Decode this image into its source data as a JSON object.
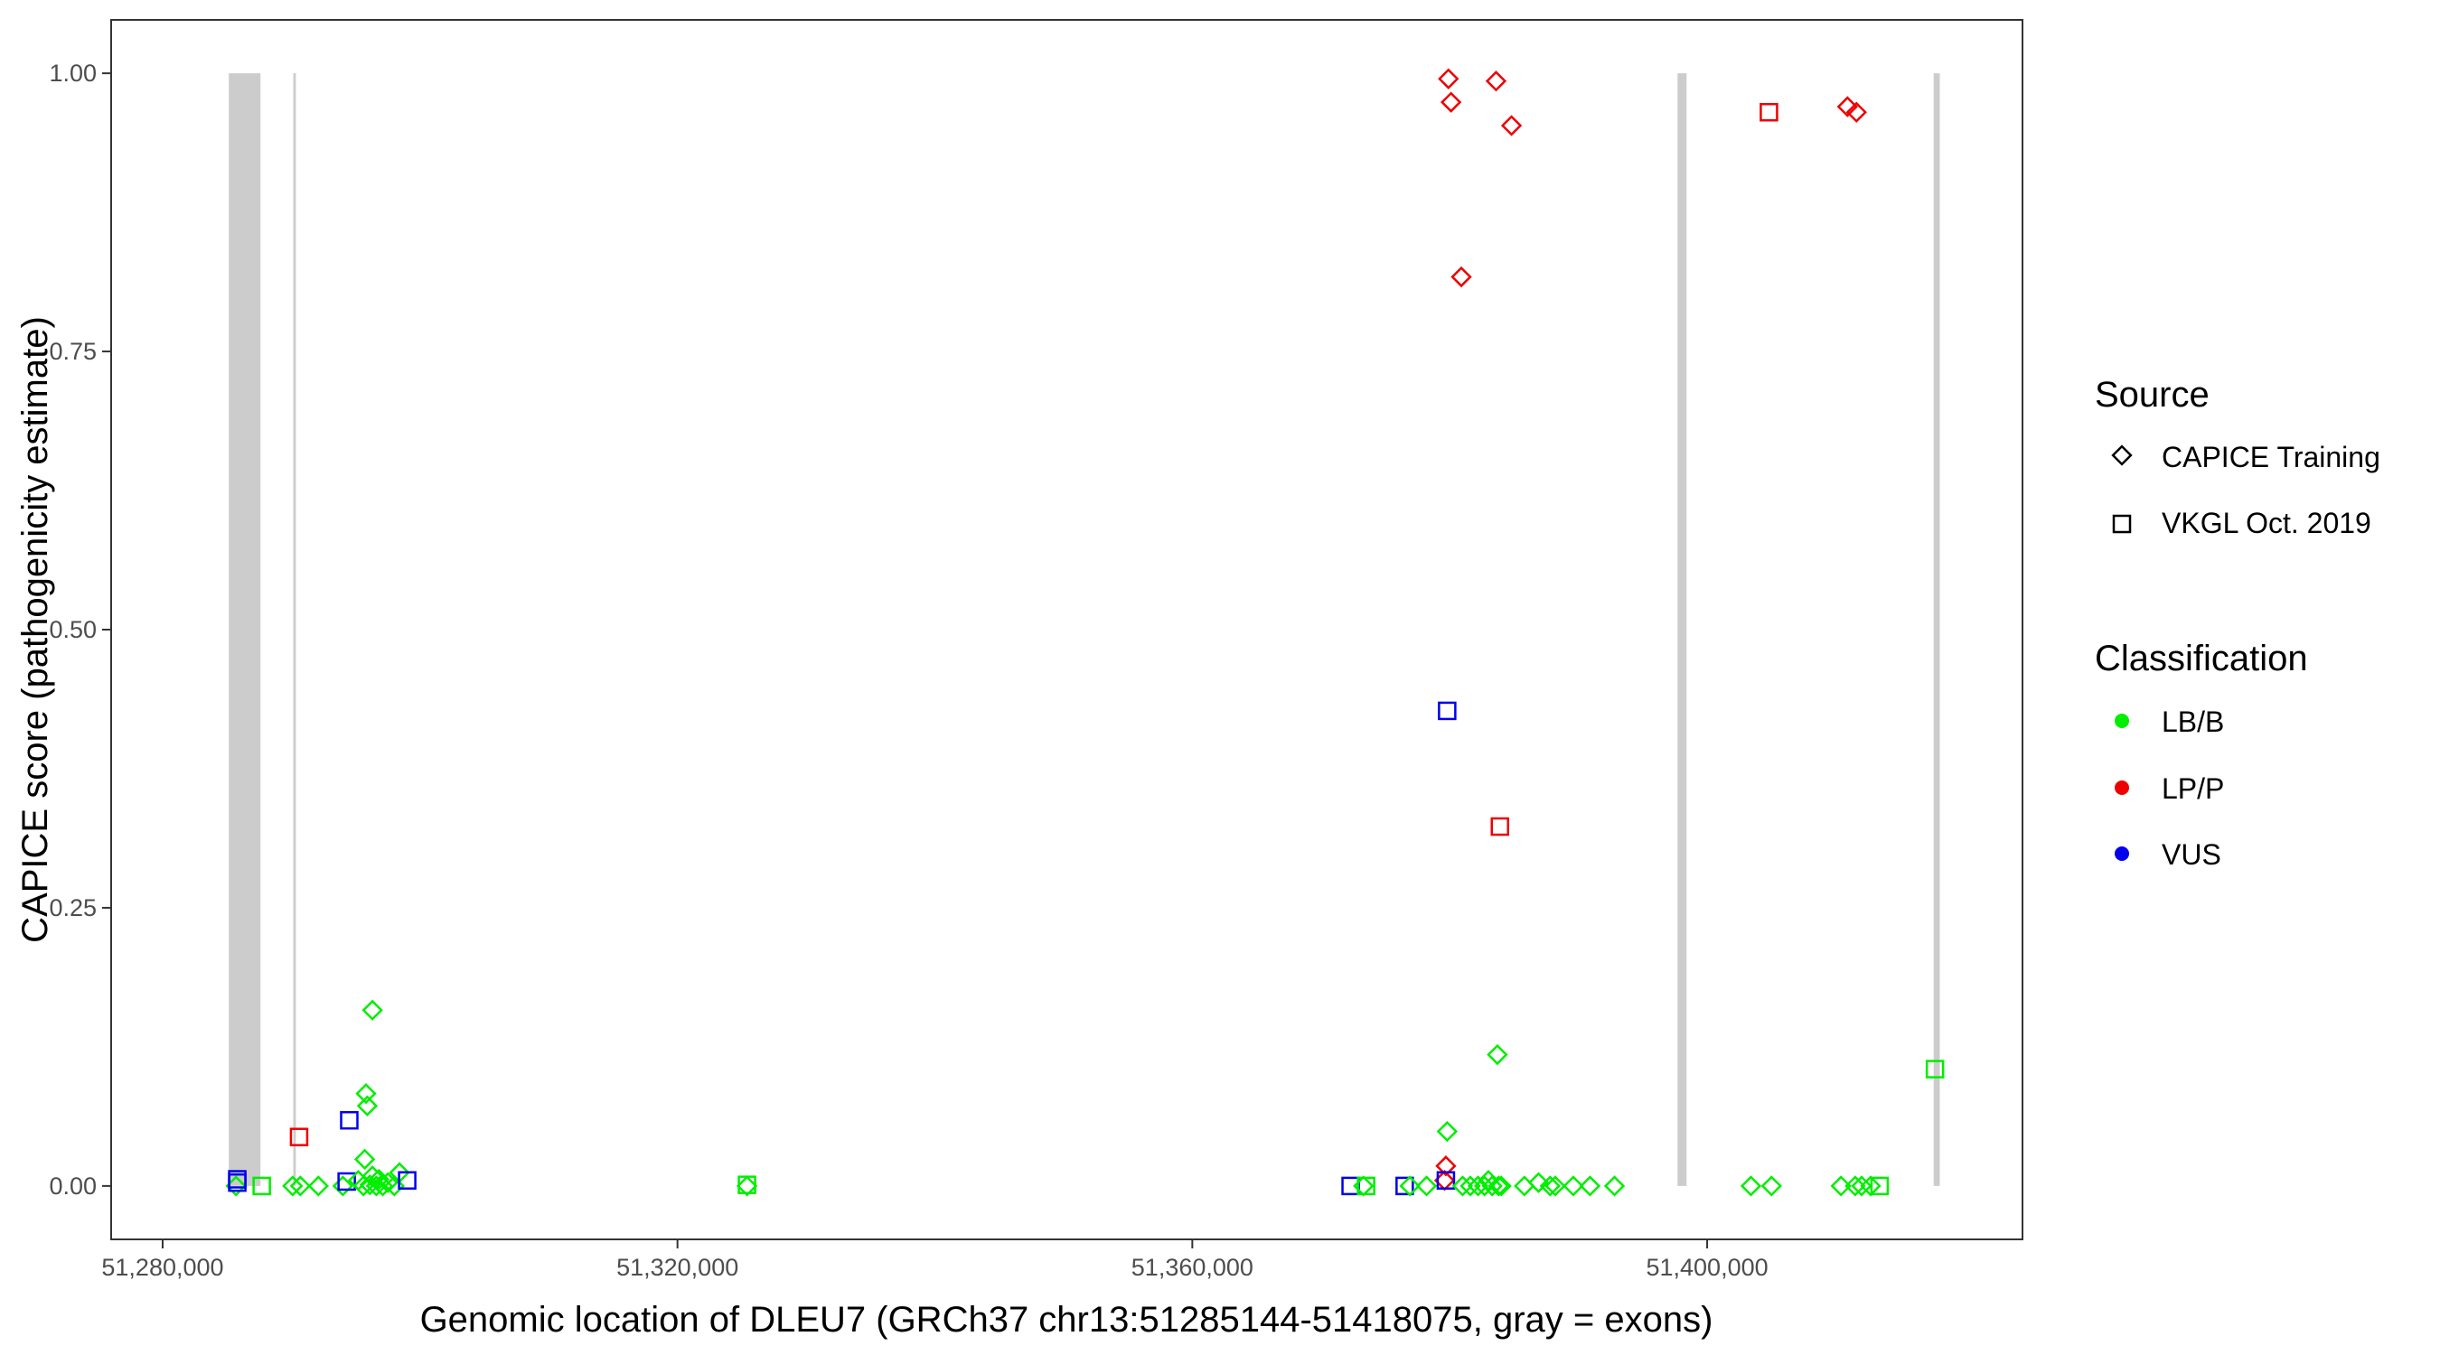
{
  "chart_data": {
    "type": "scatter",
    "xlabel": "Genomic location of DLEU7 (GRCh37 chr13:51285144-51418075, gray = exons)",
    "ylabel": "CAPICE score (pathogenicity estimate)",
    "xlim": [
      51276000,
      51424500
    ],
    "ylim": [
      -0.048,
      1.048
    ],
    "x_ticks": [
      51280000,
      51320000,
      51360000,
      51400000
    ],
    "x_tick_labels": [
      "51,280,000",
      "51,320,000",
      "51,360,000",
      "51,400,000"
    ],
    "y_ticks": [
      0,
      0.25,
      0.5,
      0.75,
      1.0
    ],
    "y_tick_labels": [
      "0.00",
      "0.25",
      "0.50",
      "0.75",
      "1.00"
    ],
    "grid": false,
    "legend_position": "right",
    "exons": [
      {
        "start": 51285144,
        "end": 51287600
      },
      {
        "start": 51290150,
        "end": 51290350
      },
      {
        "start": 51397700,
        "end": 51398400
      },
      {
        "start": 51417600,
        "end": 51418075
      }
    ],
    "exon_color": "#cccccc",
    "legends": {
      "source": {
        "title": "Source",
        "entries": [
          {
            "label": "CAPICE Training",
            "shape": "diamond"
          },
          {
            "label": "VKGL Oct. 2019",
            "shape": "square"
          }
        ]
      },
      "classification": {
        "title": "Classification",
        "entries": [
          {
            "label": "LB/B",
            "color": "#00ee00"
          },
          {
            "label": "LP/P",
            "color": "#ee0000"
          },
          {
            "label": "VUS",
            "color": "#0000ee"
          }
        ]
      }
    },
    "points": [
      {
        "x": 51285700,
        "y": 0.0,
        "source": "CAPICE Training",
        "class": "LB/B"
      },
      {
        "x": 51285800,
        "y": 0.006,
        "source": "VKGL Oct. 2019",
        "class": "VUS"
      },
      {
        "x": 51285800,
        "y": 0.003,
        "source": "VKGL Oct. 2019",
        "class": "VUS"
      },
      {
        "x": 51287700,
        "y": 0.0,
        "source": "VKGL Oct. 2019",
        "class": "LB/B"
      },
      {
        "x": 51290100,
        "y": 0.0,
        "source": "CAPICE Training",
        "class": "LB/B"
      },
      {
        "x": 51290700,
        "y": 0.0,
        "source": "CAPICE Training",
        "class": "LB/B"
      },
      {
        "x": 51290600,
        "y": 0.044,
        "source": "VKGL Oct. 2019",
        "class": "LP/P"
      },
      {
        "x": 51292100,
        "y": 0.0,
        "source": "CAPICE Training",
        "class": "LB/B"
      },
      {
        "x": 51294000,
        "y": 0.0,
        "source": "CAPICE Training",
        "class": "LB/B"
      },
      {
        "x": 51294300,
        "y": 0.004,
        "source": "VKGL Oct. 2019",
        "class": "VUS"
      },
      {
        "x": 51294500,
        "y": 0.059,
        "source": "VKGL Oct. 2019",
        "class": "VUS"
      },
      {
        "x": 51295200,
        "y": 0.005,
        "source": "CAPICE Training",
        "class": "LB/B"
      },
      {
        "x": 51295600,
        "y": 0.0,
        "source": "CAPICE Training",
        "class": "LB/B"
      },
      {
        "x": 51295700,
        "y": 0.024,
        "source": "CAPICE Training",
        "class": "LB/B"
      },
      {
        "x": 51295800,
        "y": 0.083,
        "source": "CAPICE Training",
        "class": "LB/B"
      },
      {
        "x": 51295900,
        "y": 0.072,
        "source": "CAPICE Training",
        "class": "LB/B"
      },
      {
        "x": 51296100,
        "y": 0.001,
        "source": "CAPICE Training",
        "class": "LB/B"
      },
      {
        "x": 51296300,
        "y": 0.158,
        "source": "CAPICE Training",
        "class": "LB/B"
      },
      {
        "x": 51296300,
        "y": 0.009,
        "source": "CAPICE Training",
        "class": "LB/B"
      },
      {
        "x": 51296600,
        "y": 0.0,
        "source": "CAPICE Training",
        "class": "LB/B"
      },
      {
        "x": 51296800,
        "y": 0.006,
        "source": "CAPICE Training",
        "class": "LB/B"
      },
      {
        "x": 51297100,
        "y": 0.0,
        "source": "CAPICE Training",
        "class": "LB/B"
      },
      {
        "x": 51297500,
        "y": 0.003,
        "source": "CAPICE Training",
        "class": "LB/B"
      },
      {
        "x": 51298000,
        "y": 0.0,
        "source": "CAPICE Training",
        "class": "LB/B"
      },
      {
        "x": 51298400,
        "y": 0.012,
        "source": "CAPICE Training",
        "class": "LB/B"
      },
      {
        "x": 51299000,
        "y": 0.005,
        "source": "VKGL Oct. 2019",
        "class": "VUS"
      },
      {
        "x": 51325400,
        "y": 0.0,
        "source": "CAPICE Training",
        "class": "LB/B"
      },
      {
        "x": 51325400,
        "y": 0.001,
        "source": "VKGL Oct. 2019",
        "class": "LB/B"
      },
      {
        "x": 51372300,
        "y": 0.0,
        "source": "VKGL Oct. 2019",
        "class": "VUS"
      },
      {
        "x": 51373300,
        "y": 0.0,
        "source": "CAPICE Training",
        "class": "LB/B"
      },
      {
        "x": 51373500,
        "y": 0.0,
        "source": "VKGL Oct. 2019",
        "class": "LB/B"
      },
      {
        "x": 51376500,
        "y": 0.0,
        "source": "VKGL Oct. 2019",
        "class": "VUS"
      },
      {
        "x": 51376900,
        "y": 0.0,
        "source": "CAPICE Training",
        "class": "LB/B"
      },
      {
        "x": 51378200,
        "y": 0.0,
        "source": "CAPICE Training",
        "class": "LB/B"
      },
      {
        "x": 51379600,
        "y": 0.005,
        "source": "CAPICE Training",
        "class": "LP/P"
      },
      {
        "x": 51379700,
        "y": 0.018,
        "source": "CAPICE Training",
        "class": "LP/P"
      },
      {
        "x": 51379700,
        "y": 0.005,
        "source": "VKGL Oct. 2019",
        "class": "VUS"
      },
      {
        "x": 51379800,
        "y": 0.049,
        "source": "CAPICE Training",
        "class": "LB/B"
      },
      {
        "x": 51379800,
        "y": 0.427,
        "source": "VKGL Oct. 2019",
        "class": "VUS"
      },
      {
        "x": 51379900,
        "y": 0.995,
        "source": "CAPICE Training",
        "class": "LP/P"
      },
      {
        "x": 51380100,
        "y": 0.974,
        "source": "CAPICE Training",
        "class": "LP/P"
      },
      {
        "x": 51380900,
        "y": 0.817,
        "source": "CAPICE Training",
        "class": "LP/P"
      },
      {
        "x": 51381000,
        "y": 0.0,
        "source": "CAPICE Training",
        "class": "LB/B"
      },
      {
        "x": 51381600,
        "y": 0.0,
        "source": "CAPICE Training",
        "class": "LB/B"
      },
      {
        "x": 51382200,
        "y": 0.0,
        "source": "CAPICE Training",
        "class": "LB/B"
      },
      {
        "x": 51382700,
        "y": 0.0,
        "source": "CAPICE Training",
        "class": "LB/B"
      },
      {
        "x": 51383000,
        "y": 0.005,
        "source": "CAPICE Training",
        "class": "LB/B"
      },
      {
        "x": 51383300,
        "y": 0.0,
        "source": "CAPICE Training",
        "class": "LB/B"
      },
      {
        "x": 51383600,
        "y": 0.993,
        "source": "CAPICE Training",
        "class": "LP/P"
      },
      {
        "x": 51383700,
        "y": 0.118,
        "source": "CAPICE Training",
        "class": "LB/B"
      },
      {
        "x": 51383800,
        "y": 0.0,
        "source": "CAPICE Training",
        "class": "LB/B"
      },
      {
        "x": 51383900,
        "y": 0.323,
        "source": "VKGL Oct. 2019",
        "class": "LP/P"
      },
      {
        "x": 51384000,
        "y": 0.0,
        "source": "CAPICE Training",
        "class": "LB/B"
      },
      {
        "x": 51384800,
        "y": 0.953,
        "source": "CAPICE Training",
        "class": "LP/P"
      },
      {
        "x": 51385800,
        "y": 0.0,
        "source": "CAPICE Training",
        "class": "LB/B"
      },
      {
        "x": 51386900,
        "y": 0.003,
        "source": "CAPICE Training",
        "class": "LB/B"
      },
      {
        "x": 51387800,
        "y": 0.0,
        "source": "CAPICE Training",
        "class": "LB/B"
      },
      {
        "x": 51388200,
        "y": 0.0,
        "source": "CAPICE Training",
        "class": "LB/B"
      },
      {
        "x": 51389600,
        "y": 0.0,
        "source": "CAPICE Training",
        "class": "LB/B"
      },
      {
        "x": 51390900,
        "y": 0.0,
        "source": "CAPICE Training",
        "class": "LB/B"
      },
      {
        "x": 51392800,
        "y": 0.0,
        "source": "CAPICE Training",
        "class": "LB/B"
      },
      {
        "x": 51403400,
        "y": 0.0,
        "source": "CAPICE Training",
        "class": "LB/B"
      },
      {
        "x": 51404800,
        "y": 0.965,
        "source": "VKGL Oct. 2019",
        "class": "LP/P"
      },
      {
        "x": 51405000,
        "y": 0.0,
        "source": "CAPICE Training",
        "class": "LB/B"
      },
      {
        "x": 51410400,
        "y": 0.0,
        "source": "CAPICE Training",
        "class": "LB/B"
      },
      {
        "x": 51410900,
        "y": 0.97,
        "source": "CAPICE Training",
        "class": "LP/P"
      },
      {
        "x": 51411500,
        "y": 0.0,
        "source": "CAPICE Training",
        "class": "LB/B"
      },
      {
        "x": 51411600,
        "y": 0.965,
        "source": "CAPICE Training",
        "class": "LP/P"
      },
      {
        "x": 51412000,
        "y": 0.0,
        "source": "CAPICE Training",
        "class": "LB/B"
      },
      {
        "x": 51412700,
        "y": 0.0,
        "source": "CAPICE Training",
        "class": "LB/B"
      },
      {
        "x": 51413400,
        "y": 0.0,
        "source": "VKGL Oct. 2019",
        "class": "LB/B"
      },
      {
        "x": 51417700,
        "y": 0.105,
        "source": "VKGL Oct. 2019",
        "class": "LB/B"
      }
    ]
  }
}
